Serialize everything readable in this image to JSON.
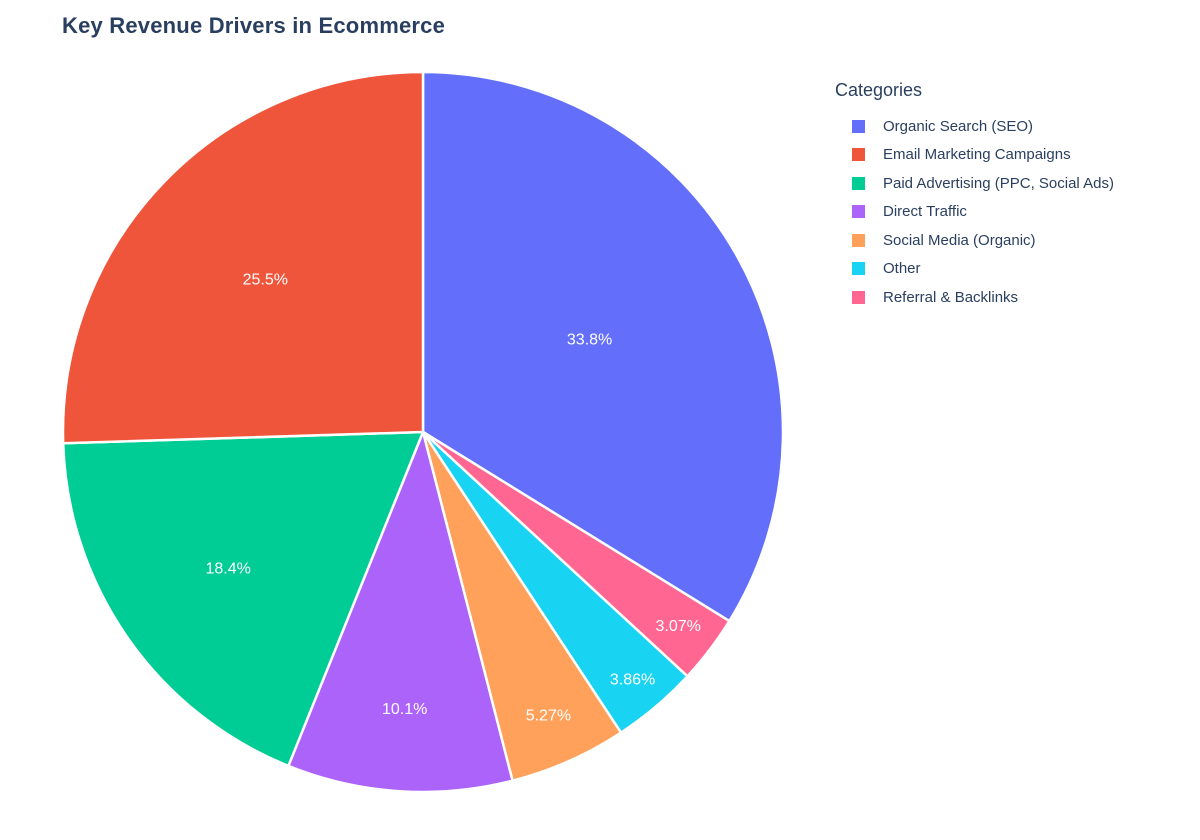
{
  "chart_data": {
    "type": "pie",
    "title": "Key Revenue Drivers in Ecommerce",
    "legend_title": "Categories",
    "legend_position": "right",
    "categories": [
      "Organic Search (SEO)",
      "Email Marketing Campaigns",
      "Paid Advertising (PPC, Social Ads)",
      "Direct Traffic",
      "Social Media (Organic)",
      "Other",
      "Referral & Backlinks"
    ],
    "values_percent": [
      33.8,
      25.5,
      18.4,
      10.1,
      5.27,
      3.86,
      3.07
    ],
    "value_labels": [
      "33.8%",
      "25.5%",
      "18.4%",
      "10.1%",
      "5.27%",
      "3.86%",
      "3.07%"
    ],
    "colors": [
      "#636EFA",
      "#EF553B",
      "#00CC96",
      "#AB63FA",
      "#FFA15A",
      "#19D3F3",
      "#FF6692"
    ],
    "slice_border_color": "#FFFFFF",
    "inside_label_color": "#FFFFFF",
    "text_color": "#2A3F5F",
    "background_color": "#FFFFFF",
    "layout_hint": {
      "largest_slice": "starts at 12 o'clock, extends clockwise",
      "remaining_slices": "descending order counterclockwise from 12 o'clock",
      "labels": "percent shown inside slices"
    }
  }
}
